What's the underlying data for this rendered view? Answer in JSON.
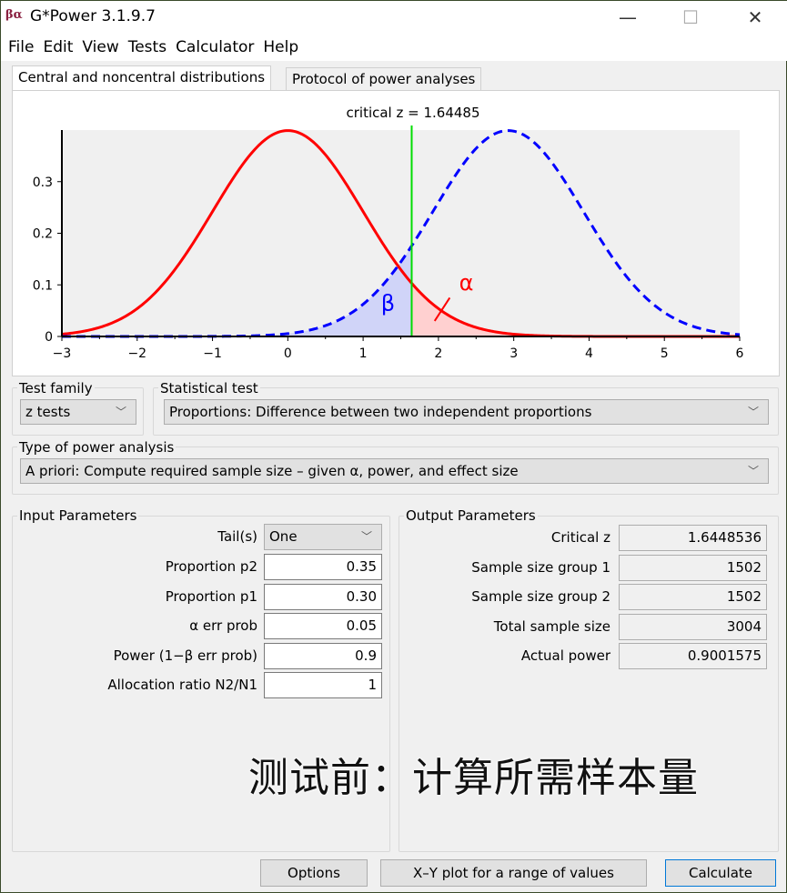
{
  "window": {
    "title": "G*Power 3.1.9.7",
    "logo_text": "βα"
  },
  "menu": [
    "File",
    "Edit",
    "View",
    "Tests",
    "Calculator",
    "Help"
  ],
  "tabs": [
    {
      "label": "Central and noncentral distributions",
      "active": true
    },
    {
      "label": "Protocol of power analyses",
      "active": false
    }
  ],
  "chart_data": {
    "type": "line",
    "title": "critical z = 1.64485",
    "xlim": [
      -3,
      6
    ],
    "ylim": [
      0,
      0.4
    ],
    "x_ticks": [
      "−3",
      "−2",
      "−1",
      "0",
      "1",
      "2",
      "3",
      "4",
      "5",
      "6"
    ],
    "y_ticks": [
      "0",
      "0.1",
      "0.2",
      "0.3"
    ],
    "series": [
      {
        "kind": "central normal",
        "mean": 0,
        "sd": 1,
        "color": "#ff0000",
        "style": "solid"
      },
      {
        "kind": "noncentral normal",
        "mean": 2.926,
        "sd": 1,
        "color": "#0000ff",
        "style": "dashed"
      }
    ],
    "critical_value": 1.64485,
    "critical_color": "#00dd00",
    "beta_label": "β",
    "alpha_label": "α",
    "beta_fill": "#d0d4f8",
    "alpha_fill": "#ffd0d0"
  },
  "test_family": {
    "label": "Test family",
    "value": "z tests"
  },
  "statistical_test": {
    "label": "Statistical test",
    "value": "Proportions: Difference between two independent proportions"
  },
  "power_analysis": {
    "label": "Type of power analysis",
    "value": "A priori: Compute required sample size – given α, power, and effect size"
  },
  "input": {
    "label": "Input Parameters",
    "params": [
      {
        "label": "Tail(s)",
        "value": "One"
      },
      {
        "label": "Proportion p2",
        "value": "0.35"
      },
      {
        "label": "Proportion p1",
        "value": "0.30"
      },
      {
        "label": "α err prob",
        "value": "0.05"
      },
      {
        "label": "Power (1−β err prob)",
        "value": "0.9"
      },
      {
        "label": "Allocation ratio N2/N1",
        "value": "1"
      }
    ]
  },
  "output": {
    "label": "Output Parameters",
    "params": [
      {
        "label": "Critical z",
        "value": "1.6448536"
      },
      {
        "label": "Sample size group 1",
        "value": "1502"
      },
      {
        "label": "Sample size group 2",
        "value": "1502"
      },
      {
        "label": "Total sample size",
        "value": "3004"
      },
      {
        "label": "Actual power",
        "value": "0.9001575"
      }
    ]
  },
  "overlay_text": "测试前：计算所需样本量",
  "buttons": {
    "options": "Options",
    "xy_plot": "X–Y plot for a range of values",
    "calculate": "Calculate"
  }
}
